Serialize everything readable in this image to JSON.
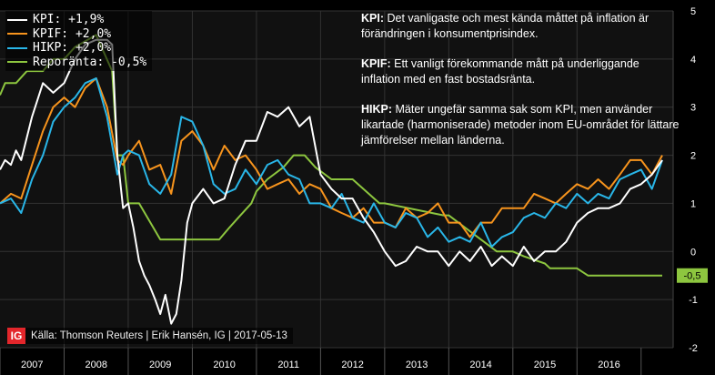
{
  "colors": {
    "kpi": "#ffffff",
    "kpif": "#f7941d",
    "hikp": "#29b6e8",
    "repo": "#8dc63f",
    "background": "#111111",
    "grid": "#333333"
  },
  "chart_data": {
    "type": "line",
    "title": "",
    "xlabel": "",
    "ylabel": "",
    "ylim": [
      -2,
      5
    ],
    "xlim": [
      2007.0,
      2017.5
    ],
    "grid": true,
    "y_ticks": [
      "5",
      "4",
      "3",
      "2",
      "1",
      "0",
      "-1",
      "-2"
    ],
    "x_tick_labels": [
      "2007",
      "2008",
      "2009",
      "2010",
      "2011",
      "2012",
      "2013",
      "2014",
      "2015",
      "2016"
    ],
    "end_label": "-0,5",
    "series": [
      {
        "name": "KPI",
        "legend": "KPI: +1,9%",
        "x": [
          2007.0,
          2007.08,
          2007.17,
          2007.25,
          2007.33,
          2007.5,
          2007.67,
          2007.83,
          2008.0,
          2008.17,
          2008.33,
          2008.5,
          2008.58,
          2008.67,
          2008.75,
          2008.83,
          2008.92,
          2009.0,
          2009.08,
          2009.17,
          2009.25,
          2009.33,
          2009.42,
          2009.5,
          2009.58,
          2009.67,
          2009.75,
          2009.83,
          2009.92,
          2010.0,
          2010.17,
          2010.33,
          2010.5,
          2010.67,
          2010.83,
          2011.0,
          2011.17,
          2011.33,
          2011.5,
          2011.67,
          2011.83,
          2012.0,
          2012.17,
          2012.33,
          2012.5,
          2012.67,
          2012.83,
          2013.0,
          2013.17,
          2013.33,
          2013.5,
          2013.67,
          2013.83,
          2014.0,
          2014.17,
          2014.33,
          2014.5,
          2014.67,
          2014.83,
          2015.0,
          2015.17,
          2015.33,
          2015.5,
          2015.67,
          2015.83,
          2016.0,
          2016.17,
          2016.33,
          2016.5,
          2016.67,
          2016.83,
          2017.0,
          2017.17,
          2017.33
        ],
        "y": [
          1.7,
          1.9,
          1.8,
          2.1,
          1.9,
          2.8,
          3.5,
          3.3,
          3.5,
          4.0,
          4.3,
          4.4,
          4.4,
          4.4,
          4.3,
          2.0,
          0.9,
          1.0,
          0.5,
          -0.2,
          -0.5,
          -0.7,
          -1.0,
          -1.3,
          -0.9,
          -1.5,
          -1.3,
          -0.6,
          0.6,
          1.0,
          1.3,
          1.0,
          1.1,
          1.8,
          2.3,
          2.3,
          2.9,
          2.8,
          3.0,
          2.6,
          2.8,
          1.6,
          1.3,
          1.1,
          1.1,
          0.7,
          0.4,
          0.0,
          -0.3,
          -0.2,
          0.1,
          0.0,
          0.0,
          -0.3,
          0.0,
          -0.2,
          0.1,
          -0.3,
          -0.1,
          -0.3,
          0.1,
          -0.2,
          0.0,
          0.0,
          0.2,
          0.6,
          0.8,
          0.9,
          0.9,
          1.0,
          1.3,
          1.4,
          1.6,
          1.9
        ]
      },
      {
        "name": "KPIF",
        "legend": "KPIF: +2,0%",
        "x": [
          2007.0,
          2007.17,
          2007.33,
          2007.5,
          2007.67,
          2007.83,
          2008.0,
          2008.17,
          2008.33,
          2008.5,
          2008.67,
          2008.83,
          2008.92,
          2009.0,
          2009.17,
          2009.33,
          2009.5,
          2009.67,
          2009.83,
          2010.0,
          2010.17,
          2010.33,
          2010.5,
          2010.67,
          2010.83,
          2011.0,
          2011.17,
          2011.33,
          2011.5,
          2011.67,
          2011.83,
          2012.0,
          2012.17,
          2012.33,
          2012.5,
          2012.67,
          2012.83,
          2013.0,
          2013.17,
          2013.33,
          2013.5,
          2013.67,
          2013.83,
          2014.0,
          2014.17,
          2014.33,
          2014.5,
          2014.67,
          2014.83,
          2015.0,
          2015.17,
          2015.33,
          2015.5,
          2015.67,
          2015.83,
          2016.0,
          2016.17,
          2016.33,
          2016.5,
          2016.67,
          2016.83,
          2017.0,
          2017.17,
          2017.33
        ],
        "y": [
          1.0,
          1.2,
          1.1,
          1.8,
          2.5,
          3.0,
          3.2,
          3.0,
          3.4,
          3.6,
          3.0,
          1.9,
          1.8,
          2.0,
          2.3,
          1.7,
          1.8,
          1.2,
          2.3,
          2.5,
          2.2,
          1.7,
          2.2,
          1.9,
          2.0,
          1.7,
          1.3,
          1.4,
          1.5,
          1.2,
          1.4,
          1.3,
          0.9,
          0.8,
          0.7,
          0.9,
          0.6,
          0.6,
          0.5,
          0.9,
          0.7,
          0.8,
          1.0,
          0.6,
          0.6,
          0.3,
          0.6,
          0.6,
          0.9,
          0.9,
          0.9,
          1.2,
          1.1,
          1.0,
          1.2,
          1.4,
          1.3,
          1.5,
          1.3,
          1.6,
          1.9,
          1.9,
          1.6,
          2.0
        ]
      },
      {
        "name": "HIKP",
        "legend": "HIKP: +2,0%",
        "x": [
          2007.0,
          2007.17,
          2007.33,
          2007.5,
          2007.67,
          2007.83,
          2008.0,
          2008.17,
          2008.33,
          2008.5,
          2008.67,
          2008.83,
          2008.92,
          2009.0,
          2009.17,
          2009.33,
          2009.5,
          2009.67,
          2009.83,
          2010.0,
          2010.17,
          2010.33,
          2010.5,
          2010.67,
          2010.83,
          2011.0,
          2011.17,
          2011.33,
          2011.5,
          2011.67,
          2011.83,
          2012.0,
          2012.17,
          2012.33,
          2012.5,
          2012.67,
          2012.83,
          2013.0,
          2013.17,
          2013.33,
          2013.5,
          2013.67,
          2013.83,
          2014.0,
          2014.17,
          2014.33,
          2014.5,
          2014.67,
          2014.83,
          2015.0,
          2015.17,
          2015.33,
          2015.5,
          2015.67,
          2015.83,
          2016.0,
          2016.17,
          2016.33,
          2016.5,
          2016.67,
          2016.83,
          2017.0,
          2017.17,
          2017.33
        ],
        "y": [
          1.0,
          1.1,
          0.8,
          1.5,
          2.0,
          2.7,
          3.0,
          3.2,
          3.5,
          3.6,
          2.8,
          1.6,
          2.0,
          2.1,
          2.0,
          1.4,
          1.2,
          1.6,
          2.8,
          2.7,
          2.2,
          1.4,
          1.2,
          1.3,
          1.7,
          1.4,
          1.8,
          1.9,
          1.6,
          1.5,
          1.0,
          1.0,
          0.9,
          1.2,
          0.7,
          0.6,
          1.0,
          0.6,
          0.5,
          0.8,
          0.7,
          0.3,
          0.5,
          0.2,
          0.3,
          0.2,
          0.6,
          0.1,
          0.3,
          0.4,
          0.7,
          0.8,
          0.7,
          1.0,
          0.9,
          1.2,
          1.0,
          1.2,
          1.1,
          1.5,
          1.6,
          1.7,
          1.3,
          1.9
        ]
      },
      {
        "name": "Reporänta",
        "legend": "Reporänta: -0,5%",
        "x": [
          2007.0,
          2007.08,
          2007.25,
          2007.42,
          2007.67,
          2007.83,
          2008.0,
          2008.17,
          2008.5,
          2008.75,
          2008.83,
          2008.92,
          2009.0,
          2009.17,
          2009.5,
          2009.83,
          2010.0,
          2010.42,
          2010.58,
          2010.75,
          2010.92,
          2011.0,
          2011.17,
          2011.42,
          2011.58,
          2011.75,
          2011.92,
          2012.17,
          2012.5,
          2012.92,
          2013.0,
          2013.92,
          2014.0,
          2014.5,
          2014.75,
          2015.0,
          2015.17,
          2015.5,
          2015.58,
          2016.0,
          2016.17,
          2017.33
        ],
        "y": [
          3.25,
          3.5,
          3.5,
          3.75,
          3.75,
          4.0,
          4.0,
          4.25,
          4.5,
          3.75,
          2.0,
          2.0,
          1.0,
          1.0,
          0.25,
          0.25,
          0.25,
          0.25,
          0.5,
          0.75,
          1.0,
          1.25,
          1.5,
          1.75,
          2.0,
          2.0,
          1.75,
          1.5,
          1.5,
          1.0,
          1.0,
          0.75,
          0.75,
          0.25,
          0.0,
          0.0,
          -0.1,
          -0.25,
          -0.35,
          -0.35,
          -0.5,
          -0.5
        ]
      }
    ]
  },
  "notes": [
    {
      "term": "KPI:",
      "text": "Det vanligaste och mest kända måttet på inflation är förändringen i konsumentprisindex."
    },
    {
      "term": "KPIF:",
      "text": "Ett vanligt förekommande mått på underliggande inflation med en fast bostadsränta."
    },
    {
      "term": "HIKP:",
      "text": "Mäter ungefär samma sak som KPI, men använder likartade (harmoniserade) metoder inom EU-området för lättare jämförelser mellan länderna."
    }
  ],
  "source": {
    "logo": "IG",
    "text": "Källa: Thomson Reuters | Erik Hansén, IG | 2017-05-13"
  }
}
